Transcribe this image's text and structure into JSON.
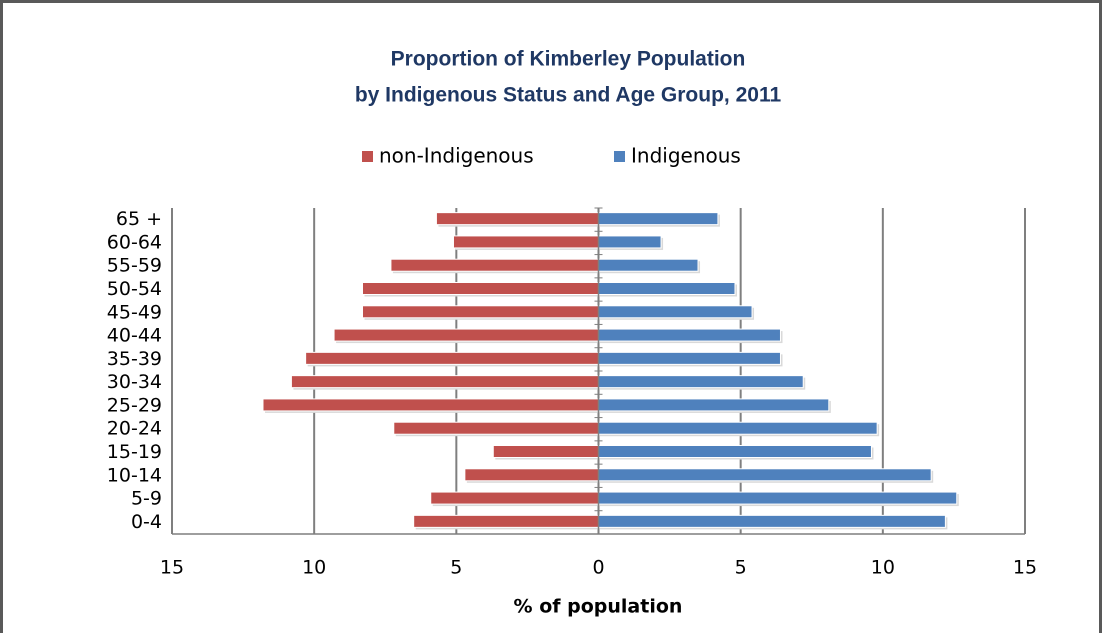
{
  "chart_data": {
    "type": "pyramid",
    "title": "Proportion of Kimberley Population",
    "subtitle": "by Indigenous Status and Age Group, 2011",
    "x_label": "% of population",
    "categories": [
      "65 +",
      "60-64",
      "55-59",
      "50-54",
      "45-49",
      "40-44",
      "35-39",
      "30-34",
      "25-29",
      "20-24",
      "15-19",
      "10-14",
      "5-9",
      "0-4"
    ],
    "series": [
      {
        "name": "non-Indigenous",
        "color": "#c0504d",
        "values": [
          -5.7,
          -5.1,
          -7.3,
          -8.3,
          -8.3,
          -9.3,
          -10.3,
          -10.8,
          -11.8,
          -7.2,
          -3.7,
          -4.7,
          -5.9,
          -6.5
        ]
      },
      {
        "name": "Indigenous",
        "color": "#4f81bd",
        "values": [
          4.2,
          2.2,
          3.5,
          4.8,
          5.4,
          6.4,
          6.4,
          7.2,
          8.1,
          9.8,
          9.6,
          11.7,
          12.6,
          12.2
        ]
      }
    ],
    "xlim": [
      -15,
      15
    ],
    "xticks": [
      {
        "value": -15,
        "label": "15"
      },
      {
        "value": -10,
        "label": "10"
      },
      {
        "value": -5,
        "label": "5"
      },
      0,
      5,
      10,
      15
    ],
    "grid": true,
    "legend": "top"
  }
}
